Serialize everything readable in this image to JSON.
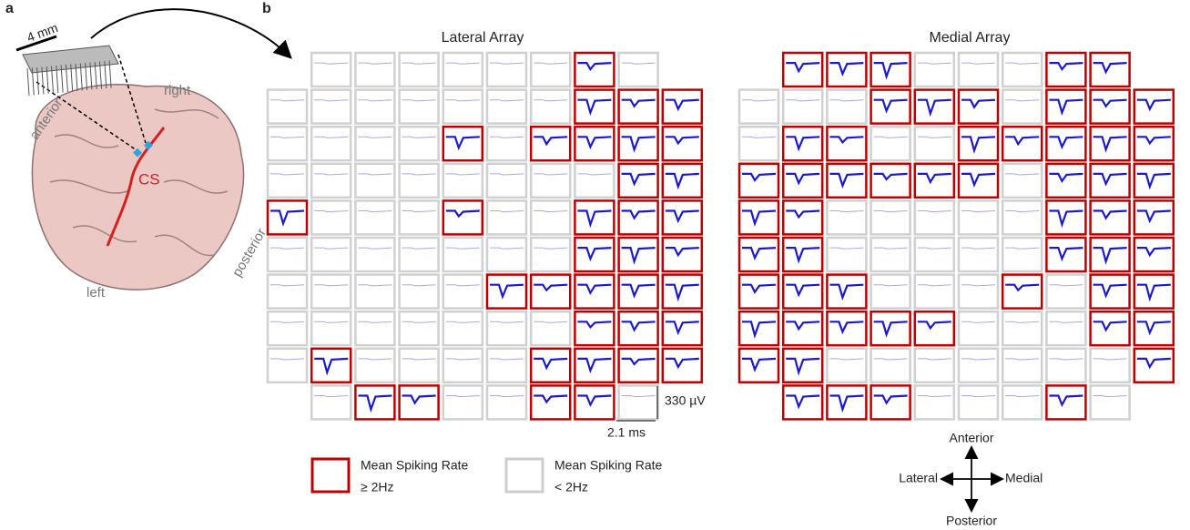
{
  "panel_a": {
    "label": "a",
    "scale": "4 mm",
    "right": "right",
    "anterior": "anterior",
    "left": "left",
    "posterior": "posterior",
    "sulcus": "CS"
  },
  "panel_b": {
    "label": "b",
    "lateral_title": "Lateral Array",
    "medial_title": "Medial Array",
    "scale_voltage": "330  µV",
    "scale_time": "2.1 ms",
    "legend": [
      {
        "line1": "Mean Spiking Rate",
        "line2": "≥   2Hz"
      },
      {
        "line1": "Mean Spiking Rate",
        "line2": "< 2Hz"
      }
    ],
    "compass": {
      "up": "Anterior",
      "left": "Lateral",
      "right": "Medial",
      "down": "Posterior"
    }
  }
}
